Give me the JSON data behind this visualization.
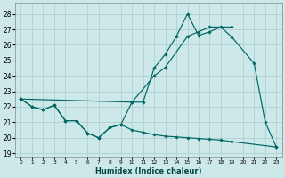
{
  "xlabel": "Humidex (Indice chaleur)",
  "bg_color": "#cce8e8",
  "grid_color": "#aacccc",
  "line_color": "#006666",
  "line1_x": [
    0,
    1,
    2,
    3,
    4,
    5,
    6,
    7,
    8,
    9,
    10,
    11,
    12,
    13,
    14,
    15,
    16,
    17,
    18,
    19,
    21,
    22,
    23
  ],
  "line1_y": [
    22.5,
    22.0,
    21.8,
    22.1,
    21.1,
    21.1,
    20.3,
    20.0,
    20.65,
    20.85,
    22.3,
    22.3,
    24.5,
    25.4,
    26.55,
    28.0,
    26.6,
    26.85,
    27.15,
    26.5,
    24.8,
    21.0,
    19.4
  ],
  "line2_x": [
    0,
    10,
    12,
    13,
    15,
    16,
    17,
    19
  ],
  "line2_y": [
    22.5,
    22.3,
    24.0,
    24.55,
    26.55,
    26.85,
    27.15,
    27.15
  ],
  "line3_x": [
    0,
    1,
    2,
    3,
    4,
    5,
    6,
    7,
    8,
    9,
    10,
    11,
    12,
    13,
    14,
    15,
    16,
    17,
    18,
    19,
    23
  ],
  "line3_y": [
    22.5,
    22.0,
    21.8,
    22.1,
    21.1,
    21.1,
    20.3,
    20.0,
    20.65,
    20.85,
    20.5,
    20.35,
    20.2,
    20.1,
    20.05,
    20.0,
    19.95,
    19.9,
    19.85,
    19.75,
    19.4
  ],
  "ylim": [
    18.8,
    28.7
  ],
  "xlim": [
    -0.5,
    23.5
  ],
  "yticks": [
    19,
    20,
    21,
    22,
    23,
    24,
    25,
    26,
    27,
    28
  ],
  "xticks": [
    0,
    1,
    2,
    3,
    4,
    5,
    6,
    7,
    8,
    9,
    10,
    11,
    12,
    13,
    14,
    15,
    16,
    17,
    18,
    19,
    20,
    21,
    22,
    23
  ]
}
